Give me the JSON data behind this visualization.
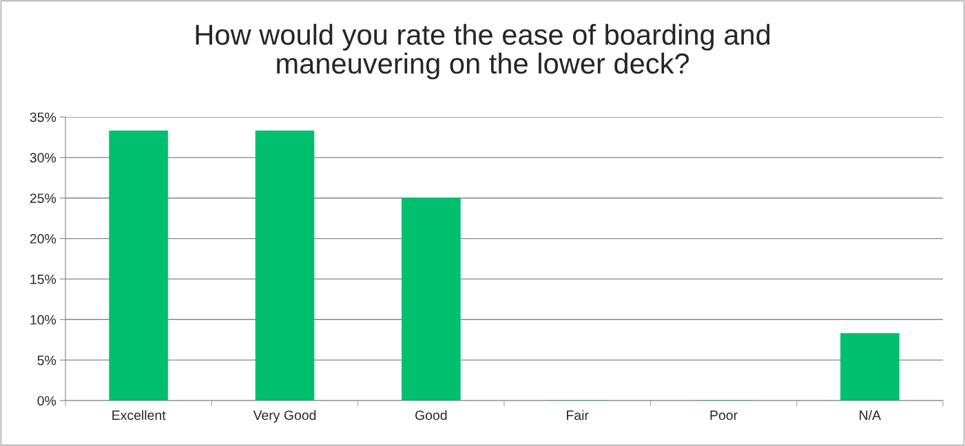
{
  "chart_data": {
    "type": "bar",
    "title": "How would you rate the ease of boarding and\nmaneuvering on the lower deck?",
    "categories": [
      "Excellent",
      "Very Good",
      "Good",
      "Fair",
      "Poor",
      "N/A"
    ],
    "values": [
      33.3,
      33.3,
      25,
      0,
      0,
      8.3
    ],
    "color": "#00bf6f",
    "ylim": [
      0,
      35
    ],
    "yticks": [
      {
        "value": 0,
        "label": "0%"
      },
      {
        "value": 5,
        "label": "5%"
      },
      {
        "value": 10,
        "label": "10%"
      },
      {
        "value": 15,
        "label": "15%"
      },
      {
        "value": 20,
        "label": "20%"
      },
      {
        "value": 25,
        "label": "25%"
      },
      {
        "value": 30,
        "label": "30%"
      },
      {
        "value": 35,
        "label": "35%"
      }
    ],
    "grid": "y",
    "legend": false
  }
}
